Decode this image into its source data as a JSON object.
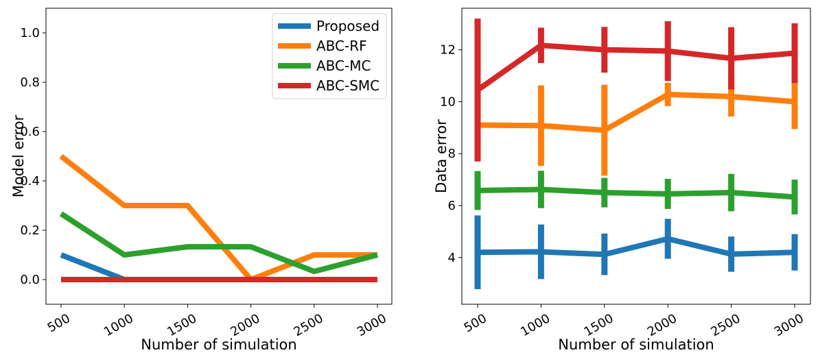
{
  "series_styles": [
    {
      "name": "Proposed",
      "color": "#1f77b4"
    },
    {
      "name": "ABC-RF",
      "color": "#ff7f0e"
    },
    {
      "name": "ABC-MC",
      "color": "#2ca02c"
    },
    {
      "name": "ABC-SMC",
      "color": "#d62728"
    }
  ],
  "chart_data": [
    {
      "type": "line",
      "title": "",
      "xlabel": "Number of simulation",
      "ylabel": "Model error",
      "x": [
        500,
        1000,
        1500,
        2000,
        2500,
        3000
      ],
      "xticks": [
        "500",
        "1000",
        "1500",
        "2000",
        "2500",
        "3000"
      ],
      "yticks": [
        "0.0",
        "0.2",
        "0.4",
        "0.6",
        "0.8",
        "1.0"
      ],
      "ytick_values": [
        0.0,
        0.2,
        0.4,
        0.6,
        0.8,
        1.0
      ],
      "ylim": [
        -0.1,
        1.1
      ],
      "grid": false,
      "legend": "top-right",
      "series": [
        {
          "name": "Proposed",
          "values": [
            0.1,
            0.0,
            0.0,
            0.0,
            0.0,
            0.0
          ]
        },
        {
          "name": "ABC-RF",
          "values": [
            0.5,
            0.3,
            0.3,
            0.0,
            0.1,
            0.1
          ]
        },
        {
          "name": "ABC-MC",
          "values": [
            0.267,
            0.1,
            0.133,
            0.133,
            0.033,
            0.1
          ]
        },
        {
          "name": "ABC-SMC",
          "values": [
            0.0,
            0.0,
            0.0,
            0.0,
            0.0,
            0.0
          ]
        }
      ]
    },
    {
      "type": "line",
      "title": "",
      "xlabel": "Number of simulation",
      "ylabel": "Data error",
      "x": [
        500,
        1000,
        1500,
        2000,
        2500,
        3000
      ],
      "xticks": [
        "500",
        "1000",
        "1500",
        "2000",
        "2500",
        "3000"
      ],
      "yticks": [
        "4",
        "6",
        "8",
        "10",
        "12"
      ],
      "ytick_values": [
        4,
        6,
        8,
        10,
        12
      ],
      "ylim": [
        2.2,
        13.6
      ],
      "grid": false,
      "error_bars": true,
      "series": [
        {
          "name": "Proposed",
          "values": [
            4.2,
            4.22,
            4.12,
            4.72,
            4.13,
            4.2
          ],
          "errors": [
            1.42,
            1.05,
            0.8,
            0.77,
            0.68,
            0.7
          ]
        },
        {
          "name": "ABC-RF",
          "values": [
            9.1,
            9.08,
            8.9,
            10.28,
            10.2,
            10.0
          ],
          "errors": [
            1.4,
            1.55,
            1.75,
            0.45,
            0.77,
            1.05
          ]
        },
        {
          "name": "ABC-MC",
          "values": [
            6.58,
            6.62,
            6.5,
            6.45,
            6.5,
            6.33
          ],
          "errors": [
            0.75,
            0.72,
            0.57,
            0.58,
            0.72,
            0.67
          ]
        },
        {
          "name": "ABC-SMC",
          "values": [
            10.45,
            12.17,
            12.0,
            11.95,
            11.67,
            11.87
          ],
          "errors": [
            2.75,
            0.68,
            0.88,
            1.15,
            1.2,
            1.15
          ]
        }
      ]
    }
  ]
}
